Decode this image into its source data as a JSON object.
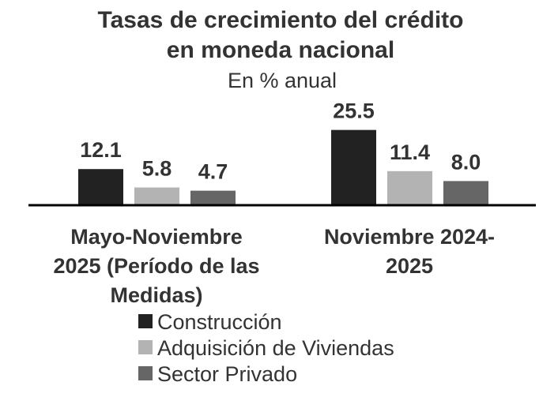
{
  "chart_data": {
    "type": "bar",
    "title": "Tasas de crecimiento del crédito en moneda nacional",
    "title_lines": [
      "Tasas de crecimiento del crédito",
      "en moneda nacional"
    ],
    "subtitle": "En % anual",
    "categories": [
      "Mayo-Noviembre 2025 (Período de las Medidas)",
      "Noviembre 2024-2025"
    ],
    "category_lines": [
      [
        "Mayo-Noviembre",
        "2025 (Período de las",
        "Medidas)"
      ],
      [
        "Noviembre 2024-",
        "2025"
      ]
    ],
    "series": [
      {
        "name": "Construcción",
        "values": [
          12.1,
          25.5
        ],
        "labels": [
          "12.1",
          "25.5"
        ],
        "color": "#222222"
      },
      {
        "name": "Adquisición de Viviendas",
        "values": [
          5.8,
          11.4
        ],
        "labels": [
          "5.8",
          "11.4"
        ],
        "color": "#b3b3b3"
      },
      {
        "name": "Sector Privado",
        "values": [
          4.7,
          8.0
        ],
        "labels": [
          "4.7",
          "8.0"
        ],
        "color": "#666666"
      }
    ],
    "xlabel": "",
    "ylabel": "",
    "ylim": [
      0,
      26
    ],
    "grid": false,
    "legend_position": "bottom",
    "text_color": "#333333"
  }
}
